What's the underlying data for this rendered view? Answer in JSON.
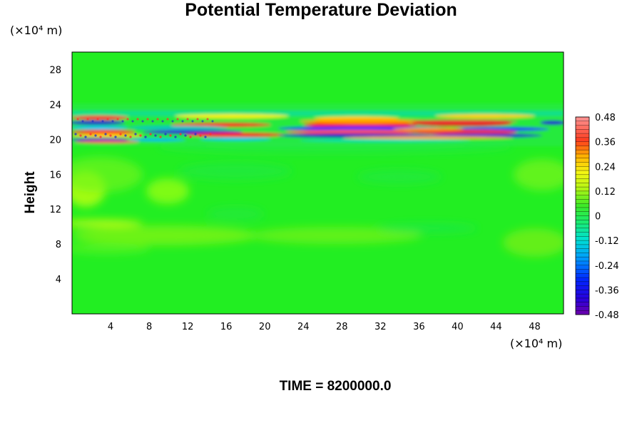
{
  "chart_data": {
    "type": "heatmap",
    "title": "Potential Temperature Deviation",
    "ylabel": "Height",
    "x_unit_label": "(×10⁴ m)",
    "y_unit_label": "(×10⁴ m)",
    "footer": "TIME = 8200000.0",
    "xlim": [
      0,
      51
    ],
    "ylim": [
      0,
      30
    ],
    "x_ticks": [
      "4",
      "8",
      "12",
      "16",
      "20",
      "24",
      "28",
      "32",
      "36",
      "40",
      "44",
      "48"
    ],
    "y_ticks": [
      "4",
      "8",
      "12",
      "16",
      "20",
      "24",
      "28"
    ],
    "colorbar": {
      "min": -0.48,
      "max": 0.48,
      "step": 0.02,
      "tick_labels": [
        "0.48",
        "0.36",
        "0.24",
        "0.12",
        "0",
        "-0.12",
        "-0.24",
        "-0.36",
        "-0.48"
      ]
    },
    "background_value": 0.0,
    "features": [
      {
        "name": "oscillation layer band",
        "y_range": [
          20,
          23
        ],
        "amplitude": 0.48
      },
      {
        "name": "positive anomaly",
        "x": 28,
        "y": 21,
        "value": 0.44
      },
      {
        "name": "positive anomaly",
        "x": 40,
        "y": 22,
        "value": 0.4
      },
      {
        "name": "negative anomaly",
        "x": 28,
        "y": 20.6,
        "value": -0.44
      },
      {
        "name": "negative anomaly",
        "x": 44,
        "y": 21,
        "value": -0.4
      },
      {
        "name": "warm patch",
        "x": 1,
        "y": 13.8,
        "value": 0.16
      },
      {
        "name": "warm layer",
        "x": 5,
        "y": 10.2,
        "value": 0.1
      }
    ]
  }
}
